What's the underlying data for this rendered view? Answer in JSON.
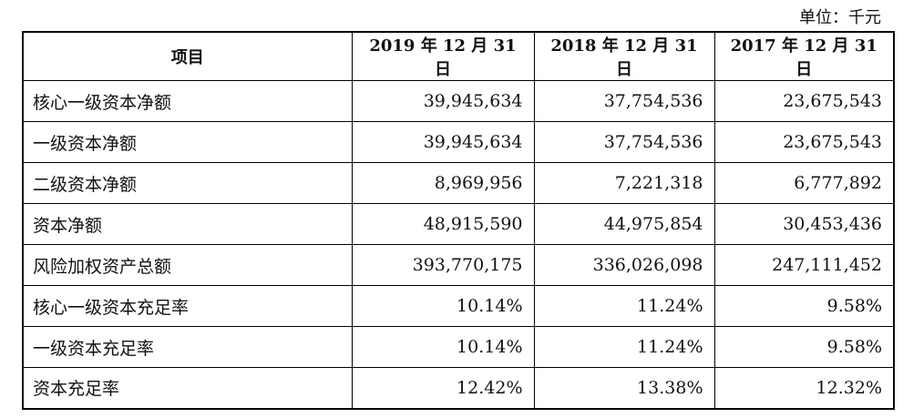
{
  "unit_label": "单位：千元",
  "table": {
    "headers": [
      "项目",
      "2019 年 12 月 31 日",
      "2018 年 12 月 31 日",
      "2017 年 12 月 31 日"
    ],
    "rows": [
      [
        "核心一级资本净额",
        "39,945,634",
        "37,754,536",
        "23,675,543"
      ],
      [
        "一级资本净额",
        "39,945,634",
        "37,754,536",
        "23,675,543"
      ],
      [
        "二级资本净额",
        "8,969,956",
        "7,221,318",
        "6,777,892"
      ],
      [
        "资本净额",
        "48,915,590",
        "44,975,854",
        "30,453,436"
      ],
      [
        "风险加权资产总额",
        "393,770,175",
        "336,026,098",
        "247,111,452"
      ],
      [
        "核心一级资本充足率",
        "10.14%",
        "11.24%",
        "9.58%"
      ],
      [
        "一级资本充足率",
        "10.14%",
        "11.24%",
        "9.58%"
      ],
      [
        "资本充足率",
        "12.42%",
        "13.38%",
        "12.32%"
      ]
    ]
  }
}
